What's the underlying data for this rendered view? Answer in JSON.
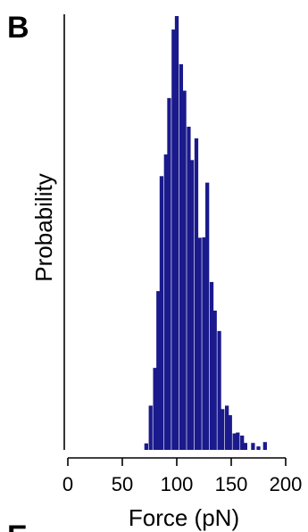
{
  "panel": {
    "letter": "B",
    "next_letter": "E"
  },
  "chart_data": {
    "type": "bar",
    "title": "",
    "xlabel": "Force (pN)",
    "ylabel": "Probability",
    "xlim": [
      0,
      200
    ],
    "xticks": [
      0,
      50,
      100,
      150,
      200
    ],
    "x_tick_labels": [
      "0",
      "50",
      "100",
      "150",
      "200"
    ],
    "y_ticks_shown": false,
    "ylim": [
      0,
      1
    ],
    "grid": false,
    "legend": "none",
    "bar_color": "#1a1a8c",
    "bin_width": 3.5,
    "x": [
      72,
      76,
      80,
      83,
      86,
      90,
      93,
      97,
      100,
      104,
      107,
      111,
      114,
      118,
      121,
      125,
      128,
      132,
      135,
      139,
      142,
      146,
      149,
      153,
      156,
      160,
      163,
      170,
      175,
      181
    ],
    "values": [
      0.015,
      0.102,
      0.189,
      0.366,
      0.631,
      0.681,
      0.811,
      0.969,
      1.0,
      0.889,
      0.828,
      0.745,
      0.668,
      0.718,
      0.489,
      0.49,
      0.616,
      0.387,
      0.321,
      0.274,
      0.094,
      0.102,
      0.08,
      0.038,
      0.04,
      0.033,
      0.016,
      0.016,
      0.008,
      0.018
    ]
  }
}
